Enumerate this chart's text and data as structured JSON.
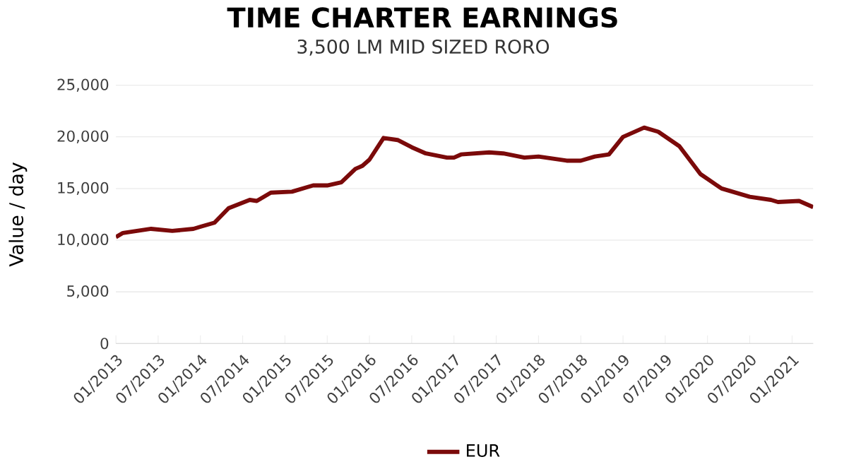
{
  "chart_data": {
    "type": "line",
    "title": "TIME CHARTER EARNINGS",
    "subtitle": "3,500 LM MID SIZED RORO",
    "ylabel": "Value / day",
    "x": [
      "2013-01",
      "2013-02",
      "2013-06",
      "2013-09",
      "2013-12",
      "2014-01",
      "2014-03",
      "2014-05",
      "2014-08",
      "2014-09",
      "2014-11",
      "2015-02",
      "2015-05",
      "2015-07",
      "2015-09",
      "2015-11",
      "2015-12",
      "2016-01",
      "2016-03",
      "2016-05",
      "2016-07",
      "2016-09",
      "2016-12",
      "2017-01",
      "2017-02",
      "2017-06",
      "2017-08",
      "2017-11",
      "2018-01",
      "2018-05",
      "2018-07",
      "2018-09",
      "2018-11",
      "2019-01",
      "2019-04",
      "2019-06",
      "2019-09",
      "2019-12",
      "2020-03",
      "2020-07",
      "2020-10",
      "2020-11",
      "2021-02",
      "2021-04"
    ],
    "series": [
      {
        "name": "EUR",
        "color": "#7b0a0a",
        "values": [
          10300,
          10700,
          11100,
          10900,
          11100,
          11300,
          11700,
          13100,
          13900,
          13800,
          14600,
          14700,
          15300,
          15300,
          15600,
          16900,
          17200,
          17800,
          19900,
          19700,
          19000,
          18400,
          18000,
          18000,
          18300,
          18500,
          18400,
          18000,
          18100,
          17700,
          17700,
          18100,
          18300,
          20000,
          20900,
          20500,
          19100,
          16400,
          15000,
          14200,
          13900,
          13700,
          13800,
          13200
        ]
      }
    ],
    "xlim": [
      "2013-01",
      "2021-04"
    ],
    "xticks": [
      {
        "value": "2013-01",
        "label": "01/2013"
      },
      {
        "value": "2013-07",
        "label": "07/2013"
      },
      {
        "value": "2014-01",
        "label": "01/2014"
      },
      {
        "value": "2014-07",
        "label": "07/2014"
      },
      {
        "value": "2015-01",
        "label": "01/2015"
      },
      {
        "value": "2015-07",
        "label": "07/2015"
      },
      {
        "value": "2016-01",
        "label": "01/2016"
      },
      {
        "value": "2016-07",
        "label": "07/2016"
      },
      {
        "value": "2017-01",
        "label": "01/2017"
      },
      {
        "value": "2017-07",
        "label": "07/2017"
      },
      {
        "value": "2018-01",
        "label": "01/2018"
      },
      {
        "value": "2018-07",
        "label": "07/2018"
      },
      {
        "value": "2019-01",
        "label": "01/2019"
      },
      {
        "value": "2019-07",
        "label": "07/2019"
      },
      {
        "value": "2020-01",
        "label": "01/2020"
      },
      {
        "value": "2020-07",
        "label": "07/2020"
      },
      {
        "value": "2021-01",
        "label": "01/2021"
      }
    ],
    "ylim": [
      0,
      25000
    ],
    "yticks": [
      0,
      {
        "value": 5000,
        "label": "5,000"
      },
      {
        "value": 10000,
        "label": "10,000"
      },
      {
        "value": 15000,
        "label": "15,000"
      },
      {
        "value": 20000,
        "label": "20,000"
      },
      {
        "value": 25000,
        "label": "25,000"
      }
    ],
    "grid": "y",
    "legend": "bottom",
    "marker": "none",
    "line_style": "solid"
  }
}
